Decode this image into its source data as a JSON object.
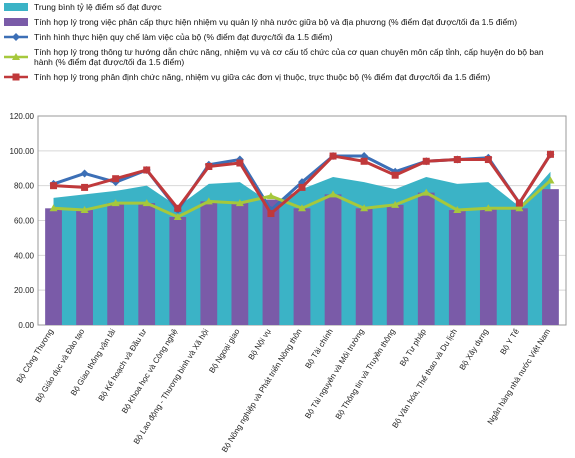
{
  "chart_data": {
    "type": "combo",
    "categories": [
      "Bộ Công Thương",
      "Bộ Giáo dục và Đào tạo",
      "Bộ Giao thông vận tải",
      "Bộ Kế hoạch và Đầu tư",
      "Bộ Khoa học và Công nghệ",
      "Bộ Lao động - Thương binh và Xã hội",
      "Bộ Ngoại giao",
      "Bộ Nội vụ",
      "Bộ Nông nghiệp và Phát triển Nông thôn",
      "Bộ Tài chính",
      "Bộ Tài nguyên và Môi trường",
      "Bộ Thông tin và Truyền thông",
      "Bộ Tư pháp",
      "Bộ Văn hóa, Thể thao và Du lịch",
      "Bộ Xây dựng",
      "Bộ Y Tế",
      "Ngân hàng nhà nước Việt Nam"
    ],
    "series": [
      {
        "name": "Trung bình tỷ lệ điểm số đạt được",
        "type": "area",
        "color": "#3bb3c6",
        "values": [
          73,
          75,
          77,
          80,
          68,
          81,
          82,
          70,
          78,
          85,
          82,
          78,
          85,
          81,
          82,
          68,
          88
        ]
      },
      {
        "name": "Tính hợp lý trong việc phân cấp thực hiện nhiệm vụ quản lý nhà nước giữa bộ và địa phương (% điểm đạt được/tối đa 1.5 điểm)",
        "type": "bar",
        "color": "#7a5ba8",
        "values": [
          67,
          66,
          70,
          70,
          62,
          71,
          70,
          72,
          67,
          75,
          67,
          69,
          76,
          66,
          67,
          67,
          78
        ]
      },
      {
        "name": "Tình hình thực hiện quy chế làm việc của bộ (% điểm đạt được/tối đa 1.5 điểm)",
        "type": "line",
        "marker": "diamond",
        "color": "#3c6fb6",
        "values": [
          81,
          87,
          82,
          89,
          66,
          92,
          95,
          66,
          82,
          97,
          97,
          88,
          94,
          95,
          96,
          70,
          98
        ]
      },
      {
        "name": "Tính hợp lý trong thông tư hướng dẫn chức năng, nhiệm vụ và cơ cấu tổ chức của cơ quan chuyên môn cấp tỉnh, cấp huyện do bộ ban hành (% điểm đạt được/tối đa 1.5 điểm)",
        "type": "line",
        "marker": "triangle",
        "color": "#a6c83c",
        "values": [
          67,
          66,
          70,
          70,
          62,
          71,
          70,
          74,
          67,
          75,
          67,
          69,
          76,
          66,
          67,
          67,
          83
        ]
      },
      {
        "name": "Tính hợp lý trong phân định chức năng, nhiệm vụ giữa các đơn vị thuộc, trực thuộc bộ (% điểm đạt được/tối đa 1.5 điểm)",
        "type": "line",
        "marker": "square",
        "color": "#c0393b",
        "values": [
          80,
          79,
          84,
          89,
          67,
          91,
          93,
          64,
          79,
          97,
          94,
          86,
          94,
          95,
          95,
          70,
          98
        ]
      }
    ],
    "ylim": [
      0,
      120
    ],
    "yticks": [
      {
        "value": 0,
        "label": "0.00"
      },
      {
        "value": 20,
        "label": "20.00"
      },
      {
        "value": 40,
        "label": "40.00"
      },
      {
        "value": 60,
        "label": "60.00"
      },
      {
        "value": 80,
        "label": "80.00"
      },
      {
        "value": 100,
        "label": "100.00"
      },
      {
        "value": 120,
        "label": "120.00"
      }
    ],
    "grid": true
  }
}
